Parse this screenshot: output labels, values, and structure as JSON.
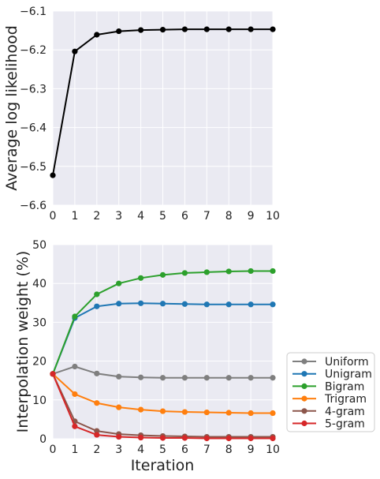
{
  "chart_data": [
    {
      "type": "line",
      "title": "",
      "xlabel": "",
      "ylabel": "Average log likelihood",
      "x": [
        0,
        1,
        2,
        3,
        4,
        5,
        6,
        7,
        8,
        9,
        10
      ],
      "xticks": [
        "0",
        "1",
        "2",
        "3",
        "4",
        "5",
        "6",
        "7",
        "8",
        "9",
        "10"
      ],
      "xlim": [
        0,
        10
      ],
      "ylim": [
        -6.6,
        -6.1
      ],
      "yticks": [
        -6.6,
        -6.5,
        -6.4,
        -6.3,
        -6.2,
        -6.1
      ],
      "ytick_labels": [
        "−6.6",
        "−6.5",
        "−6.4",
        "−6.3",
        "−6.2",
        "−6.1"
      ],
      "grid": true,
      "series": [
        {
          "color": "#000000",
          "values": [
            -6.523,
            -6.204,
            -6.161,
            -6.152,
            -6.149,
            -6.148,
            -6.147,
            -6.147,
            -6.147,
            -6.147,
            -6.147
          ]
        }
      ]
    },
    {
      "type": "line",
      "title": "",
      "xlabel": "Iteration",
      "ylabel": "Interpolation weight (%)",
      "x": [
        0,
        1,
        2,
        3,
        4,
        5,
        6,
        7,
        8,
        9,
        10
      ],
      "xticks": [
        "0",
        "1",
        "2",
        "3",
        "4",
        "5",
        "6",
        "7",
        "8",
        "9",
        "10"
      ],
      "xlim": [
        0,
        10
      ],
      "ylim": [
        0,
        50
      ],
      "yticks": [
        0,
        10,
        20,
        30,
        40,
        50
      ],
      "ytick_labels": [
        "0",
        "10",
        "20",
        "30",
        "40",
        "50"
      ],
      "grid": true,
      "legend_position": "outside-right-bottom",
      "series": [
        {
          "name": "Uniform",
          "color": "#7f7f7f",
          "values": [
            16.7,
            18.6,
            16.8,
            16.0,
            15.8,
            15.7,
            15.7,
            15.7,
            15.7,
            15.7,
            15.7
          ]
        },
        {
          "name": "Unigram",
          "color": "#1f77b4",
          "values": [
            16.7,
            31.1,
            34.1,
            34.8,
            34.9,
            34.8,
            34.7,
            34.6,
            34.6,
            34.6,
            34.6
          ]
        },
        {
          "name": "Bigram",
          "color": "#2ca02c",
          "values": [
            16.7,
            31.5,
            37.2,
            40.0,
            41.4,
            42.2,
            42.7,
            42.9,
            43.1,
            43.2,
            43.2
          ]
        },
        {
          "name": "Trigram",
          "color": "#ff7f0e",
          "values": [
            16.7,
            11.5,
            9.2,
            8.1,
            7.5,
            7.1,
            6.9,
            6.8,
            6.7,
            6.6,
            6.6
          ]
        },
        {
          "name": "4-gram",
          "color": "#8c564b",
          "values": [
            16.7,
            4.5,
            2.0,
            1.2,
            0.9,
            0.7,
            0.6,
            0.5,
            0.5,
            0.5,
            0.5
          ]
        },
        {
          "name": "5-gram",
          "color": "#d62728",
          "values": [
            16.7,
            3.2,
            1.0,
            0.5,
            0.3,
            0.2,
            0.2,
            0.1,
            0.1,
            0.1,
            0.1
          ]
        }
      ]
    }
  ]
}
